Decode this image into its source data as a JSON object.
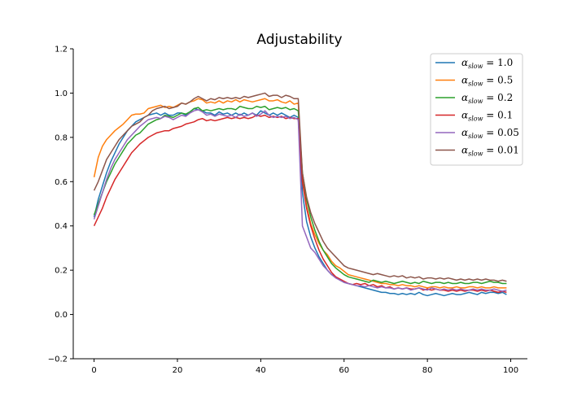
{
  "chart_data": {
    "type": "line",
    "title": "Adjustability",
    "xlabel": "",
    "ylabel": "",
    "xlim": [
      -5,
      104
    ],
    "ylim": [
      -0.2,
      1.2
    ],
    "xticks": [
      0,
      20,
      40,
      60,
      80,
      100
    ],
    "yticks": [
      -0.2,
      0.0,
      0.2,
      0.4,
      0.6,
      0.8,
      1.0,
      1.2
    ],
    "xtick_labels": [
      "0",
      "20",
      "40",
      "60",
      "80",
      "100"
    ],
    "ytick_labels": [
      "−0.2",
      "0.0",
      "0.2",
      "0.4",
      "0.6",
      "0.8",
      "1.0",
      "1.2"
    ],
    "grid": false,
    "legend_position": "top-right",
    "x": [
      0,
      1,
      2,
      3,
      4,
      5,
      6,
      7,
      8,
      9,
      10,
      11,
      12,
      13,
      14,
      15,
      16,
      17,
      18,
      19,
      20,
      21,
      22,
      23,
      24,
      25,
      26,
      27,
      28,
      29,
      30,
      31,
      32,
      33,
      34,
      35,
      36,
      37,
      38,
      39,
      40,
      41,
      42,
      43,
      44,
      45,
      46,
      47,
      48,
      49,
      50,
      51,
      52,
      53,
      54,
      55,
      56,
      57,
      58,
      59,
      60,
      61,
      62,
      63,
      64,
      65,
      66,
      67,
      68,
      69,
      70,
      71,
      72,
      73,
      74,
      75,
      76,
      77,
      78,
      79,
      80,
      81,
      82,
      83,
      84,
      85,
      86,
      87,
      88,
      89,
      90,
      91,
      92,
      93,
      94,
      95,
      96,
      97,
      98,
      99
    ],
    "series": [
      {
        "name": "α_slow = 1.0",
        "legend_main": "α",
        "legend_sub": "slow",
        "legend_value": " = 1.0",
        "color": "#1f77b4",
        "values": [
          0.44,
          0.52,
          0.58,
          0.64,
          0.69,
          0.73,
          0.77,
          0.8,
          0.83,
          0.85,
          0.87,
          0.88,
          0.89,
          0.9,
          0.905,
          0.91,
          0.9,
          0.91,
          0.9,
          0.9,
          0.91,
          0.91,
          0.9,
          0.915,
          0.93,
          0.925,
          0.92,
          0.91,
          0.91,
          0.9,
          0.915,
          0.905,
          0.91,
          0.9,
          0.91,
          0.9,
          0.91,
          0.9,
          0.91,
          0.9,
          0.92,
          0.91,
          0.9,
          0.91,
          0.9,
          0.91,
          0.9,
          0.89,
          0.9,
          0.89,
          0.55,
          0.42,
          0.35,
          0.3,
          0.26,
          0.23,
          0.2,
          0.18,
          0.17,
          0.155,
          0.145,
          0.14,
          0.135,
          0.13,
          0.125,
          0.12,
          0.115,
          0.11,
          0.105,
          0.1,
          0.1,
          0.095,
          0.095,
          0.09,
          0.095,
          0.09,
          0.095,
          0.09,
          0.1,
          0.09,
          0.085,
          0.09,
          0.095,
          0.09,
          0.085,
          0.09,
          0.095,
          0.09,
          0.09,
          0.095,
          0.1,
          0.095,
          0.09,
          0.1,
          0.095,
          0.1,
          0.1,
          0.095,
          0.1,
          0.09
        ]
      },
      {
        "name": "α_slow = 0.5",
        "legend_main": "α",
        "legend_sub": "slow",
        "legend_value": " = 0.5",
        "color": "#ff7f0e",
        "values": [
          0.62,
          0.71,
          0.76,
          0.79,
          0.81,
          0.83,
          0.845,
          0.86,
          0.88,
          0.9,
          0.905,
          0.905,
          0.91,
          0.93,
          0.935,
          0.94,
          0.945,
          0.935,
          0.94,
          0.935,
          0.945,
          0.955,
          0.95,
          0.96,
          0.965,
          0.975,
          0.97,
          0.955,
          0.96,
          0.955,
          0.965,
          0.955,
          0.965,
          0.96,
          0.97,
          0.96,
          0.97,
          0.965,
          0.96,
          0.965,
          0.97,
          0.975,
          0.965,
          0.965,
          0.97,
          0.96,
          0.955,
          0.965,
          0.95,
          0.955,
          0.62,
          0.49,
          0.41,
          0.36,
          0.32,
          0.29,
          0.27,
          0.24,
          0.22,
          0.21,
          0.195,
          0.18,
          0.175,
          0.17,
          0.165,
          0.16,
          0.155,
          0.15,
          0.145,
          0.14,
          0.14,
          0.135,
          0.135,
          0.13,
          0.135,
          0.13,
          0.13,
          0.125,
          0.13,
          0.125,
          0.12,
          0.125,
          0.125,
          0.12,
          0.125,
          0.12,
          0.12,
          0.125,
          0.12,
          0.12,
          0.125,
          0.125,
          0.12,
          0.125,
          0.12,
          0.12,
          0.125,
          0.12,
          0.12,
          0.12
        ]
      },
      {
        "name": "α_slow = 0.2",
        "legend_main": "α",
        "legend_sub": "slow",
        "legend_value": " = 0.2",
        "color": "#2ca02c",
        "values": [
          0.45,
          0.5,
          0.55,
          0.6,
          0.64,
          0.68,
          0.71,
          0.74,
          0.77,
          0.79,
          0.81,
          0.82,
          0.84,
          0.86,
          0.87,
          0.88,
          0.885,
          0.9,
          0.895,
          0.89,
          0.9,
          0.91,
          0.905,
          0.915,
          0.93,
          0.935,
          0.92,
          0.925,
          0.92,
          0.925,
          0.93,
          0.925,
          0.93,
          0.93,
          0.925,
          0.94,
          0.935,
          0.93,
          0.93,
          0.94,
          0.935,
          0.94,
          0.925,
          0.93,
          0.935,
          0.93,
          0.935,
          0.925,
          0.93,
          0.92,
          0.64,
          0.52,
          0.44,
          0.38,
          0.33,
          0.29,
          0.26,
          0.23,
          0.21,
          0.195,
          0.18,
          0.17,
          0.165,
          0.16,
          0.155,
          0.15,
          0.145,
          0.155,
          0.15,
          0.145,
          0.15,
          0.145,
          0.14,
          0.145,
          0.15,
          0.145,
          0.14,
          0.145,
          0.14,
          0.15,
          0.145,
          0.14,
          0.145,
          0.145,
          0.14,
          0.145,
          0.14,
          0.14,
          0.145,
          0.14,
          0.14,
          0.145,
          0.145,
          0.14,
          0.145,
          0.15,
          0.145,
          0.145,
          0.14,
          0.14
        ]
      },
      {
        "name": "α_slow = 0.1",
        "legend_main": "α",
        "legend_sub": "slow",
        "legend_value": " = 0.1",
        "color": "#d62728",
        "values": [
          0.4,
          0.44,
          0.48,
          0.53,
          0.57,
          0.61,
          0.64,
          0.67,
          0.7,
          0.73,
          0.75,
          0.77,
          0.785,
          0.8,
          0.81,
          0.82,
          0.825,
          0.83,
          0.83,
          0.84,
          0.845,
          0.85,
          0.86,
          0.865,
          0.87,
          0.88,
          0.885,
          0.875,
          0.88,
          0.875,
          0.88,
          0.885,
          0.89,
          0.885,
          0.89,
          0.885,
          0.89,
          0.885,
          0.89,
          0.9,
          0.895,
          0.9,
          0.89,
          0.895,
          0.89,
          0.895,
          0.885,
          0.89,
          0.885,
          0.885,
          0.6,
          0.48,
          0.4,
          0.34,
          0.29,
          0.25,
          0.22,
          0.19,
          0.17,
          0.16,
          0.15,
          0.14,
          0.135,
          0.14,
          0.135,
          0.14,
          0.13,
          0.135,
          0.125,
          0.13,
          0.12,
          0.125,
          0.115,
          0.12,
          0.115,
          0.12,
          0.115,
          0.115,
          0.12,
          0.11,
          0.115,
          0.11,
          0.115,
          0.11,
          0.11,
          0.105,
          0.11,
          0.105,
          0.11,
          0.105,
          0.11,
          0.11,
          0.105,
          0.11,
          0.105,
          0.11,
          0.105,
          0.1,
          0.105,
          0.1
        ]
      },
      {
        "name": "α_slow = 0.05",
        "legend_main": "α",
        "legend_sub": "slow",
        "legend_value": " = 0.05",
        "color": "#9467bd",
        "values": [
          0.43,
          0.49,
          0.55,
          0.61,
          0.66,
          0.7,
          0.73,
          0.76,
          0.79,
          0.81,
          0.83,
          0.85,
          0.865,
          0.88,
          0.885,
          0.89,
          0.885,
          0.895,
          0.89,
          0.88,
          0.89,
          0.9,
          0.895,
          0.91,
          0.92,
          0.925,
          0.915,
          0.9,
          0.905,
          0.895,
          0.905,
          0.9,
          0.895,
          0.9,
          0.89,
          0.905,
          0.895,
          0.9,
          0.91,
          0.895,
          0.905,
          0.92,
          0.9,
          0.89,
          0.895,
          0.89,
          0.895,
          0.885,
          0.89,
          0.88,
          0.4,
          0.35,
          0.3,
          0.28,
          0.25,
          0.22,
          0.2,
          0.18,
          0.165,
          0.155,
          0.145,
          0.14,
          0.135,
          0.13,
          0.13,
          0.125,
          0.13,
          0.125,
          0.12,
          0.125,
          0.12,
          0.12,
          0.115,
          0.12,
          0.115,
          0.12,
          0.11,
          0.115,
          0.12,
          0.115,
          0.11,
          0.12,
          0.115,
          0.11,
          0.115,
          0.11,
          0.115,
          0.11,
          0.115,
          0.11,
          0.11,
          0.115,
          0.11,
          0.115,
          0.11,
          0.11,
          0.115,
          0.11,
          0.105,
          0.11
        ]
      },
      {
        "name": "α_slow = 0.01",
        "legend_main": "α",
        "legend_sub": "slow",
        "legend_value": " = 0.01",
        "color": "#8c564b",
        "values": [
          0.56,
          0.6,
          0.65,
          0.7,
          0.73,
          0.76,
          0.79,
          0.81,
          0.83,
          0.85,
          0.86,
          0.87,
          0.89,
          0.9,
          0.92,
          0.93,
          0.935,
          0.94,
          0.93,
          0.935,
          0.94,
          0.955,
          0.95,
          0.96,
          0.975,
          0.985,
          0.975,
          0.965,
          0.975,
          0.97,
          0.98,
          0.975,
          0.98,
          0.975,
          0.98,
          0.975,
          0.985,
          0.98,
          0.985,
          0.99,
          0.995,
          1.0,
          0.985,
          0.99,
          0.99,
          0.98,
          0.99,
          0.985,
          0.975,
          0.975,
          0.64,
          0.53,
          0.46,
          0.41,
          0.37,
          0.33,
          0.3,
          0.28,
          0.26,
          0.24,
          0.22,
          0.21,
          0.205,
          0.2,
          0.195,
          0.19,
          0.185,
          0.18,
          0.185,
          0.18,
          0.175,
          0.17,
          0.175,
          0.17,
          0.175,
          0.165,
          0.17,
          0.165,
          0.17,
          0.16,
          0.165,
          0.165,
          0.16,
          0.165,
          0.16,
          0.165,
          0.16,
          0.155,
          0.16,
          0.155,
          0.16,
          0.155,
          0.16,
          0.155,
          0.16,
          0.155,
          0.155,
          0.15,
          0.155,
          0.15
        ]
      }
    ]
  }
}
